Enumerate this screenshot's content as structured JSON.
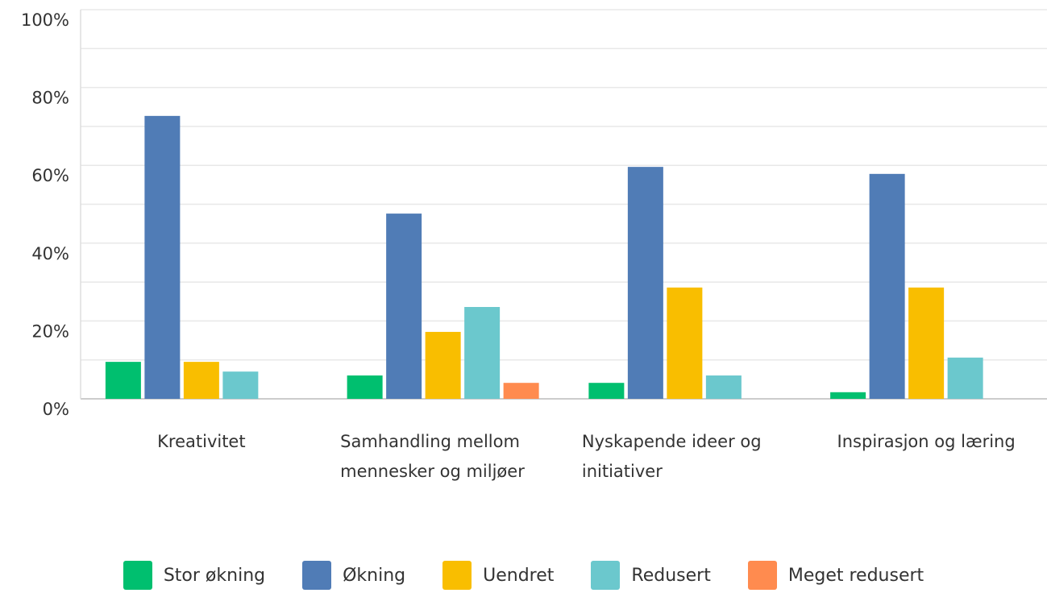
{
  "chart_data": {
    "type": "bar",
    "categories": [
      "Kreativitet",
      "Samhandling mellom mennesker og miljøer",
      "Nyskapende ideer og initiativer",
      "Inspirasjon og læring"
    ],
    "series": [
      {
        "name": "Stor økning",
        "color": "#00bf6f",
        "values": [
          9.5,
          6.0,
          4.1,
          1.7
        ]
      },
      {
        "name": "Økning",
        "color": "#507cb6",
        "values": [
          72.7,
          47.6,
          59.6,
          57.8
        ]
      },
      {
        "name": "Uendret",
        "color": "#f9be00",
        "values": [
          9.5,
          17.2,
          28.6,
          28.6
        ]
      },
      {
        "name": "Redusert",
        "color": "#6bc8cd",
        "values": [
          7.0,
          23.6,
          6.0,
          10.6
        ]
      },
      {
        "name": "Meget redusert",
        "color": "#ff8b4f",
        "values": [
          0,
          4.1,
          0,
          0
        ]
      }
    ],
    "ylim": [
      0,
      100
    ],
    "yticks": [
      {
        "value": 0,
        "label": "0%"
      },
      {
        "value": 20,
        "label": "20%"
      },
      {
        "value": 40,
        "label": "40%"
      },
      {
        "value": 60,
        "label": "60%"
      },
      {
        "value": 80,
        "label": "80%"
      },
      {
        "value": 100,
        "label": "100%"
      }
    ],
    "minor_yticks": [
      10,
      30,
      50,
      70,
      90
    ],
    "grid": true,
    "legend": "bottom"
  }
}
